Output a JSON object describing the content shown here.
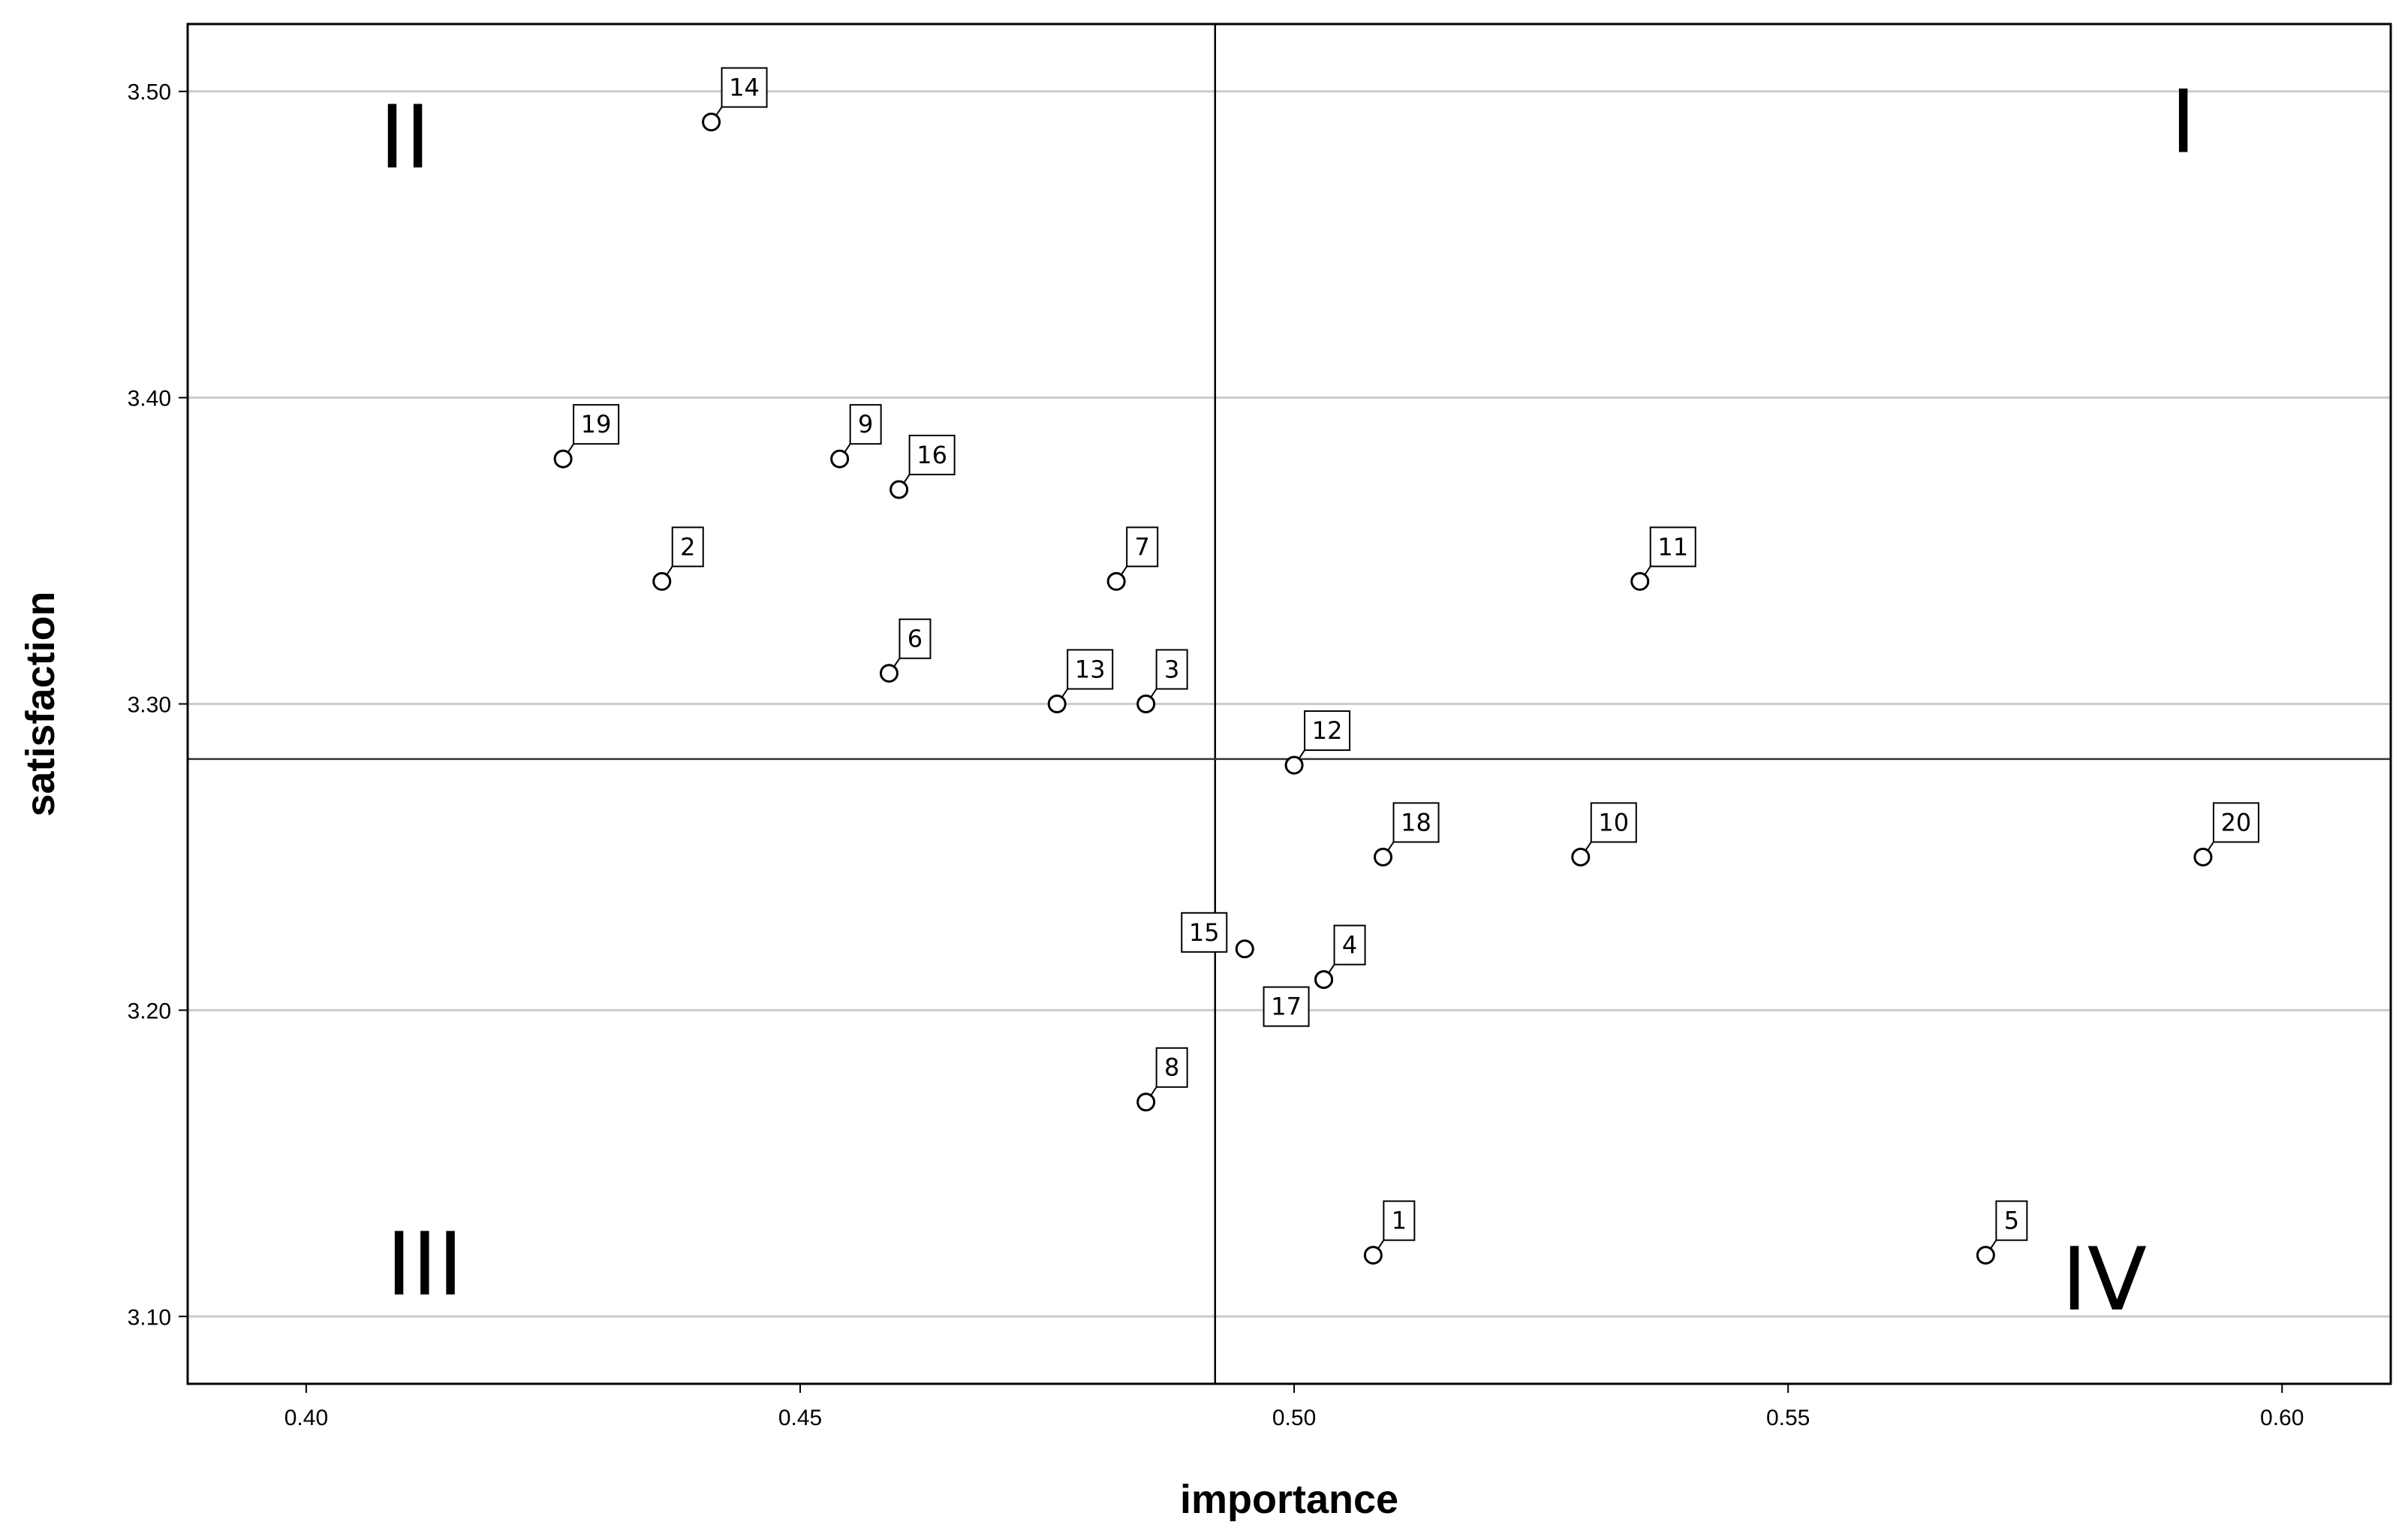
{
  "chart_data": {
    "type": "scatter",
    "xlabel": "importance",
    "ylabel": "satisfaction",
    "xlim": [
      0.388,
      0.611
    ],
    "ylim": [
      3.078,
      3.522
    ],
    "x_ticks": [
      {
        "value": 0.4,
        "label": "0.40"
      },
      {
        "value": 0.45,
        "label": "0.45"
      },
      {
        "value": 0.5,
        "label": "0.50"
      },
      {
        "value": 0.55,
        "label": "0.55"
      },
      {
        "value": 0.6,
        "label": "0.60"
      }
    ],
    "y_ticks": [
      {
        "value": 3.1,
        "label": "3.10"
      },
      {
        "value": 3.2,
        "label": "3.20"
      },
      {
        "value": 3.3,
        "label": "3.30"
      },
      {
        "value": 3.4,
        "label": "3.40"
      },
      {
        "value": 3.5,
        "label": "3.50"
      }
    ],
    "horizontal_gridlines": true,
    "reference_lines": {
      "x": 0.492,
      "y": 3.282
    },
    "quadrants": [
      {
        "label": "I",
        "x": 0.59,
        "y": 3.488
      },
      {
        "label": "II",
        "x": 0.41,
        "y": 3.483
      },
      {
        "label": "III",
        "x": 0.412,
        "y": 3.115
      },
      {
        "label": "IV",
        "x": 0.582,
        "y": 3.11
      }
    ],
    "points": [
      {
        "label": "1",
        "x": 0.508,
        "y": 3.12
      },
      {
        "label": "2",
        "x": 0.436,
        "y": 3.34
      },
      {
        "label": "3",
        "x": 0.485,
        "y": 3.3
      },
      {
        "label": "4",
        "x": 0.503,
        "y": 3.21
      },
      {
        "label": "5",
        "x": 0.57,
        "y": 3.12
      },
      {
        "label": "6",
        "x": 0.459,
        "y": 3.31
      },
      {
        "label": "7",
        "x": 0.482,
        "y": 3.34
      },
      {
        "label": "8",
        "x": 0.485,
        "y": 3.17
      },
      {
        "label": "9",
        "x": 0.454,
        "y": 3.38
      },
      {
        "label": "10",
        "x": 0.529,
        "y": 3.25
      },
      {
        "label": "11",
        "x": 0.535,
        "y": 3.34
      },
      {
        "label": "12",
        "x": 0.5,
        "y": 3.28
      },
      {
        "label": "13",
        "x": 0.476,
        "y": 3.3
      },
      {
        "label": "14",
        "x": 0.441,
        "y": 3.49
      },
      {
        "label": "15",
        "x": 0.495,
        "y": 3.22
      },
      {
        "label": "16",
        "x": 0.46,
        "y": 3.37
      },
      {
        "label": "17",
        "x": 0.503,
        "y": 3.21
      },
      {
        "label": "18",
        "x": 0.509,
        "y": 3.25
      },
      {
        "label": "19",
        "x": 0.426,
        "y": 3.38
      },
      {
        "label": "20",
        "x": 0.592,
        "y": 3.25
      }
    ]
  }
}
